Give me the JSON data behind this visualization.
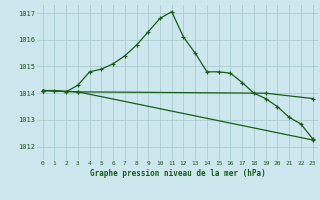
{
  "title": "Graphe pression niveau de la mer (hPa)",
  "background_color": "#cce8ee",
  "grid_color": "#aacccc",
  "line_color": "#1a5c1a",
  "text_color": "#1a5c1a",
  "xlim": [
    -0.5,
    23.5
  ],
  "ylim": [
    1011.5,
    1017.3
  ],
  "yticks": [
    1012,
    1013,
    1014,
    1015,
    1016,
    1017
  ],
  "xticks": [
    0,
    1,
    2,
    3,
    4,
    5,
    6,
    7,
    8,
    9,
    10,
    11,
    12,
    13,
    14,
    15,
    16,
    17,
    18,
    19,
    20,
    21,
    22,
    23
  ],
  "series1_x": [
    0,
    1,
    2,
    3,
    4,
    5,
    6,
    7,
    8,
    9,
    10,
    11,
    12,
    13,
    14,
    15,
    16,
    17,
    18,
    19,
    20,
    21,
    22,
    23
  ],
  "series1_y": [
    1014.1,
    1014.1,
    1014.05,
    1014.3,
    1014.8,
    1014.9,
    1015.1,
    1015.4,
    1015.8,
    1016.3,
    1016.8,
    1017.05,
    1016.1,
    1015.5,
    1014.8,
    1014.8,
    1014.75,
    1014.4,
    1014.0,
    1013.8,
    1013.5,
    1013.1,
    1012.85,
    1012.3
  ],
  "series2_x": [
    0,
    3,
    19,
    23
  ],
  "series2_y": [
    1014.1,
    1014.05,
    1014.0,
    1013.8
  ],
  "series3_x": [
    0,
    3,
    23
  ],
  "series3_y": [
    1014.1,
    1014.05,
    1012.25
  ]
}
